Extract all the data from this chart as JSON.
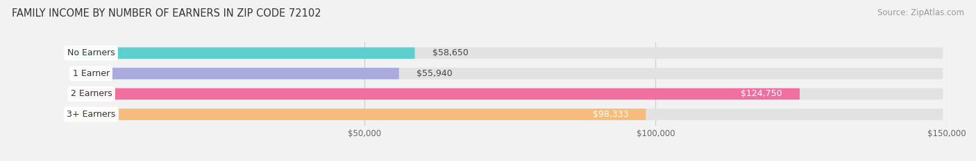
{
  "title": "FAMILY INCOME BY NUMBER OF EARNERS IN ZIP CODE 72102",
  "source": "Source: ZipAtlas.com",
  "categories": [
    "No Earners",
    "1 Earner",
    "2 Earners",
    "3+ Earners"
  ],
  "values": [
    58650,
    55940,
    124750,
    98333
  ],
  "bar_colors": [
    "#5ecece",
    "#aaaadd",
    "#f06fa0",
    "#f5bc7a"
  ],
  "label_colors": [
    "#333333",
    "#333333",
    "#ffffff",
    "#333333"
  ],
  "xlim": [
    0,
    150000
  ],
  "xtick_values": [
    50000,
    100000,
    150000
  ],
  "xtick_labels": [
    "$50,000",
    "$100,000",
    "$150,000"
  ],
  "background_color": "#f2f2f2",
  "bar_background_color": "#e2e2e2",
  "title_fontsize": 10.5,
  "source_fontsize": 8.5,
  "bar_height": 0.58,
  "label_fontsize": 9,
  "category_fontsize": 9
}
